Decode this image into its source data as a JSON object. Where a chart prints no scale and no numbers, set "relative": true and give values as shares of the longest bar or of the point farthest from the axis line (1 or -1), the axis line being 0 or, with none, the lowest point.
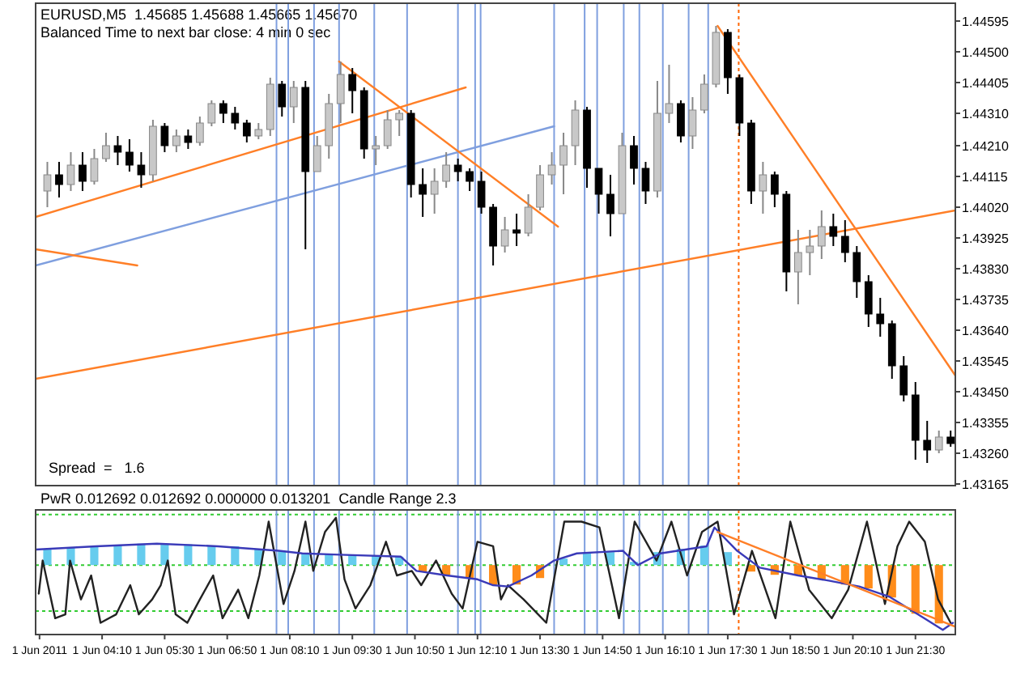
{
  "chart_data": [
    {
      "type": "candlestick",
      "title": "EURUSD,M5  1.45685 1.45688 1.45665 1.45670",
      "subtitle": "Balanced Time to next bar close: 4 min 0 sec",
      "annotations": [
        "Spread  =   1.6"
      ],
      "tick_labels": "y",
      "xlim": [
        "2011-06-01T02:45",
        "2011-06-01T22:21"
      ],
      "ylim": [
        1.4316,
        1.4465
      ],
      "yticks": [
        1.43165,
        {
          "value": 1.4326,
          "label": "1.43260"
        },
        1.43355,
        {
          "value": 1.4345,
          "label": "1.43450"
        },
        1.43545,
        {
          "value": 1.4364,
          "label": "1.43640"
        },
        1.43735,
        {
          "value": 1.4383,
          "label": "1.43830"
        },
        1.43925,
        {
          "value": 1.4402,
          "label": "1.44020"
        },
        1.44115,
        {
          "value": 1.4421,
          "label": "1.44210"
        },
        {
          "value": 1.4431,
          "label": "1.44310"
        },
        1.44405,
        {
          "value": 1.445,
          "label": "1.44500"
        },
        1.44595
      ],
      "x": [
        "2011-06-01T03:00",
        "2011-06-01T03:15",
        "2011-06-01T03:30",
        "2011-06-01T03:45",
        "2011-06-01T04:00",
        "2011-06-01T04:15",
        "2011-06-01T04:30",
        "2011-06-01T04:45",
        "2011-06-01T05:00",
        "2011-06-01T05:15",
        "2011-06-01T05:30",
        "2011-06-01T05:45",
        "2011-06-01T06:00",
        "2011-06-01T06:15",
        "2011-06-01T06:30",
        "2011-06-01T06:45",
        "2011-06-01T07:00",
        "2011-06-01T07:15",
        "2011-06-01T07:30",
        "2011-06-01T07:45",
        "2011-06-01T08:00",
        "2011-06-01T08:15",
        "2011-06-01T08:30",
        "2011-06-01T08:45",
        "2011-06-01T09:00",
        "2011-06-01T09:15",
        "2011-06-01T09:30",
        "2011-06-01T09:45",
        "2011-06-01T10:00",
        "2011-06-01T10:15",
        "2011-06-01T10:30",
        "2011-06-01T10:45",
        "2011-06-01T11:00",
        "2011-06-01T11:15",
        "2011-06-01T11:30",
        "2011-06-01T11:45",
        "2011-06-01T12:00",
        "2011-06-01T12:15",
        "2011-06-01T12:30",
        "2011-06-01T12:45",
        "2011-06-01T13:00",
        "2011-06-01T13:15",
        "2011-06-01T13:30",
        "2011-06-01T13:45",
        "2011-06-01T14:00",
        "2011-06-01T14:15",
        "2011-06-01T14:30",
        "2011-06-01T14:45",
        "2011-06-01T15:00",
        "2011-06-01T15:15",
        "2011-06-01T15:30",
        "2011-06-01T15:45",
        "2011-06-01T16:00",
        "2011-06-01T16:15",
        "2011-06-01T16:30",
        "2011-06-01T16:45",
        "2011-06-01T17:00",
        "2011-06-01T17:15",
        "2011-06-01T17:30",
        "2011-06-01T17:45",
        "2011-06-01T18:00",
        "2011-06-01T18:15",
        "2011-06-01T18:30",
        "2011-06-01T18:45",
        "2011-06-01T19:00",
        "2011-06-01T19:15",
        "2011-06-01T19:30",
        "2011-06-01T19:45",
        "2011-06-01T20:00",
        "2011-06-01T20:15",
        "2011-06-01T20:30",
        "2011-06-01T20:45",
        "2011-06-01T21:00",
        "2011-06-01T21:15",
        "2011-06-01T21:30",
        "2011-06-01T21:45",
        "2011-06-01T22:00",
        "2011-06-01T22:15"
      ],
      "ohlc": [
        [
          1.4407,
          1.4416,
          1.4402,
          1.4412
        ],
        [
          1.4412,
          1.4416,
          1.4405,
          1.4409
        ],
        [
          1.4409,
          1.4419,
          1.4407,
          1.4415
        ],
        [
          1.4415,
          1.4419,
          1.4407,
          1.441
        ],
        [
          1.441,
          1.442,
          1.4409,
          1.4417
        ],
        [
          1.4417,
          1.4425,
          1.4416,
          1.4421
        ],
        [
          1.4421,
          1.4424,
          1.4415,
          1.4419
        ],
        [
          1.4419,
          1.4423,
          1.4413,
          1.4415
        ],
        [
          1.4415,
          1.4419,
          1.4408,
          1.4412
        ],
        [
          1.4412,
          1.4429,
          1.441,
          1.4427
        ],
        [
          1.4427,
          1.4428,
          1.4419,
          1.4421
        ],
        [
          1.4421,
          1.4426,
          1.4419,
          1.4424
        ],
        [
          1.4424,
          1.4426,
          1.442,
          1.4422
        ],
        [
          1.4422,
          1.443,
          1.4421,
          1.4428
        ],
        [
          1.4428,
          1.4435,
          1.4427,
          1.4434
        ],
        [
          1.4434,
          1.4435,
          1.4428,
          1.4431
        ],
        [
          1.4431,
          1.4433,
          1.4426,
          1.4428
        ],
        [
          1.4428,
          1.4429,
          1.4422,
          1.4424
        ],
        [
          1.4424,
          1.4428,
          1.4423,
          1.4426
        ],
        [
          1.4426,
          1.4442,
          1.4424,
          1.444
        ],
        [
          1.444,
          1.4441,
          1.443,
          1.4433
        ],
        [
          1.4433,
          1.4441,
          1.4428,
          1.4439
        ],
        [
          1.4439,
          1.4441,
          1.4389,
          1.4413
        ],
        [
          1.4413,
          1.4424,
          1.4413,
          1.4421
        ],
        [
          1.4421,
          1.4437,
          1.4417,
          1.4434
        ],
        [
          1.4434,
          1.4447,
          1.4428,
          1.4443
        ],
        [
          1.4443,
          1.4445,
          1.4431,
          1.4438
        ],
        [
          1.4438,
          1.4439,
          1.4417,
          1.442
        ],
        [
          1.442,
          1.4424,
          1.4415,
          1.4421
        ],
        [
          1.4421,
          1.4432,
          1.442,
          1.4429
        ],
        [
          1.4429,
          1.4432,
          1.4424,
          1.4431
        ],
        [
          1.4431,
          1.4432,
          1.4405,
          1.4409
        ],
        [
          1.4409,
          1.4414,
          1.4399,
          1.4406
        ],
        [
          1.4406,
          1.4414,
          1.44,
          1.441
        ],
        [
          1.441,
          1.4419,
          1.4408,
          1.4415
        ],
        [
          1.4415,
          1.4417,
          1.441,
          1.4413
        ],
        [
          1.4413,
          1.4414,
          1.4407,
          1.441
        ],
        [
          1.441,
          1.4413,
          1.44,
          1.4402
        ],
        [
          1.4402,
          1.4403,
          1.4384,
          1.439
        ],
        [
          1.439,
          1.4399,
          1.4388,
          1.4395
        ],
        [
          1.4395,
          1.44,
          1.439,
          1.4394
        ],
        [
          1.4394,
          1.4406,
          1.4393,
          1.4402
        ],
        [
          1.4402,
          1.4415,
          1.4401,
          1.4412
        ],
        [
          1.4412,
          1.4419,
          1.4409,
          1.4415
        ],
        [
          1.4415,
          1.4425,
          1.4406,
          1.4421
        ],
        [
          1.4421,
          1.4435,
          1.4415,
          1.4432
        ],
        [
          1.4432,
          1.4433,
          1.4408,
          1.4414
        ],
        [
          1.4414,
          1.4414,
          1.44,
          1.4406
        ],
        [
          1.4406,
          1.4412,
          1.4393,
          1.44
        ],
        [
          1.44,
          1.4425,
          1.44,
          1.4421
        ],
        [
          1.4421,
          1.4424,
          1.4409,
          1.4414
        ],
        [
          1.4414,
          1.4416,
          1.4403,
          1.4407
        ],
        [
          1.4407,
          1.4441,
          1.4405,
          1.4431
        ],
        [
          1.4431,
          1.4446,
          1.4428,
          1.4434
        ],
        [
          1.4434,
          1.4435,
          1.4422,
          1.4424
        ],
        [
          1.4424,
          1.4436,
          1.442,
          1.4432
        ],
        [
          1.4432,
          1.4443,
          1.4431,
          1.444
        ],
        [
          1.444,
          1.4458,
          1.4439,
          1.4456
        ],
        [
          1.4456,
          1.4457,
          1.4437,
          1.4442
        ],
        [
          1.4442,
          1.4443,
          1.4424,
          1.4428
        ],
        [
          1.4428,
          1.4429,
          1.4403,
          1.4407
        ],
        [
          1.4407,
          1.4416,
          1.44,
          1.4412
        ],
        [
          1.4412,
          1.4413,
          1.4402,
          1.4406
        ],
        [
          1.4406,
          1.4407,
          1.4376,
          1.4382
        ],
        [
          1.4382,
          1.4395,
          1.4372,
          1.4388
        ],
        [
          1.4388,
          1.4395,
          1.4381,
          1.439
        ],
        [
          1.439,
          1.4401,
          1.4386,
          1.4396
        ],
        [
          1.4396,
          1.44,
          1.439,
          1.4393
        ],
        [
          1.4393,
          1.4398,
          1.4385,
          1.4388
        ],
        [
          1.4388,
          1.439,
          1.4374,
          1.4379
        ],
        [
          1.4379,
          1.4381,
          1.4365,
          1.4369
        ],
        [
          1.4369,
          1.4374,
          1.4362,
          1.4366
        ],
        [
          1.4366,
          1.4367,
          1.4349,
          1.4353
        ],
        [
          1.4353,
          1.4356,
          1.4342,
          1.4344
        ],
        [
          1.4344,
          1.4348,
          1.4324,
          1.433
        ],
        [
          1.433,
          1.4336,
          1.4323,
          1.4327
        ],
        [
          1.4327,
          1.4333,
          1.4326,
          1.4331
        ],
        [
          1.4331,
          1.4333,
          1.4328,
          1.4329
        ]
      ],
      "series": [
        {
          "type": "line",
          "color": "#ff7f27",
          "x": [
            "2011-06-01T02:45",
            "2011-06-01T11:55"
          ],
          "values": [
            1.4399,
            1.4439
          ]
        },
        {
          "type": "line",
          "color": "#7f9fdf",
          "x": [
            "2011-06-01T02:45",
            "2011-06-01T13:48"
          ],
          "values": [
            1.4384,
            1.4427
          ]
        },
        {
          "type": "line",
          "color": "#ff7f27",
          "x": [
            "2011-06-01T02:45",
            "2011-06-01T04:55"
          ],
          "values": [
            1.4389,
            1.4384
          ]
        },
        {
          "type": "line",
          "color": "#ff7f27",
          "x": [
            "2011-06-01T02:45",
            "2011-06-01T22:21"
          ],
          "values": [
            1.4349,
            1.4401
          ]
        },
        {
          "type": "line",
          "color": "#ff7f27",
          "x": [
            "2011-06-01T09:13",
            "2011-06-01T13:53"
          ],
          "values": [
            1.4447,
            1.4396
          ]
        },
        {
          "type": "line",
          "color": "#ff7f27",
          "x": [
            "2011-06-01T17:17",
            "2011-06-01T22:21"
          ],
          "values": [
            1.4458,
            1.435
          ]
        }
      ],
      "ref_lines": [
        {
          "axis": "x",
          "value": "2011-06-01T07:53",
          "color": "#7f9fdf"
        },
        {
          "axis": "x",
          "value": "2011-06-01T08:08",
          "color": "#7f9fdf"
        },
        {
          "axis": "x",
          "value": "2011-06-01T08:41",
          "color": "#7f9fdf"
        },
        {
          "axis": "x",
          "value": "2011-06-01T09:13",
          "color": "#7f9fdf"
        },
        {
          "axis": "x",
          "value": "2011-06-01T09:58",
          "color": "#7f9fdf"
        },
        {
          "axis": "x",
          "value": "2011-06-01T10:40",
          "color": "#7f9fdf"
        },
        {
          "axis": "x",
          "value": "2011-06-01T11:45",
          "color": "#7f9fdf"
        },
        {
          "axis": "x",
          "value": "2011-06-01T12:07",
          "color": "#7f9fdf"
        },
        {
          "axis": "x",
          "value": "2011-06-01T12:14",
          "color": "#7f9fdf"
        },
        {
          "axis": "x",
          "value": "2011-06-01T13:48",
          "color": "#7f9fdf"
        },
        {
          "axis": "x",
          "value": "2011-06-01T14:27",
          "color": "#7f9fdf"
        },
        {
          "axis": "x",
          "value": "2011-06-01T14:43",
          "color": "#7f9fdf"
        },
        {
          "axis": "x",
          "value": "2011-06-01T15:17",
          "color": "#7f9fdf"
        },
        {
          "axis": "x",
          "value": "2011-06-01T15:37",
          "color": "#7f9fdf"
        },
        {
          "axis": "x",
          "value": "2011-06-01T16:07",
          "color": "#7f9fdf"
        },
        {
          "axis": "x",
          "value": "2011-06-01T16:40",
          "color": "#7f9fdf"
        },
        {
          "axis": "x",
          "value": "2011-06-01T17:05",
          "color": "#7f9fdf"
        },
        {
          "axis": "x",
          "value": "2011-06-01T17:44",
          "color": "#ff6600",
          "line_style": "dotted"
        }
      ]
    },
    {
      "type": "bar",
      "title": "PwR 0.012692 0.012692 0.000000 0.013201  Candle Range 2.3",
      "relative": true,
      "tick_labels": "x",
      "xlim": [
        "2011-06-01T02:45",
        "2011-06-01T22:21"
      ],
      "xticks": [
        {
          "value": "2011-06-01T02:50",
          "label": "1 Jun 2011"
        },
        {
          "value": "2011-06-01T04:10",
          "label": "1 Jun 04:10"
        },
        {
          "value": "2011-06-01T05:30",
          "label": "1 Jun 05:30"
        },
        {
          "value": "2011-06-01T06:50",
          "label": "1 Jun 06:50"
        },
        {
          "value": "2011-06-01T08:10",
          "label": "1 Jun 08:10"
        },
        {
          "value": "2011-06-01T09:30",
          "label": "1 Jun 09:30"
        },
        {
          "value": "2011-06-01T10:50",
          "label": "1 Jun 10:50"
        },
        {
          "value": "2011-06-01T12:10",
          "label": "1 Jun 12:10"
        },
        {
          "value": "2011-06-01T13:30",
          "label": "1 Jun 13:30"
        },
        {
          "value": "2011-06-01T14:50",
          "label": "1 Jun 14:50"
        },
        {
          "value": "2011-06-01T16:10",
          "label": "1 Jun 16:10"
        },
        {
          "value": "2011-06-01T17:30",
          "label": "1 Jun 17:30"
        },
        {
          "value": "2011-06-01T18:50",
          "label": "1 Jun 18:50"
        },
        {
          "value": "2011-06-01T20:10",
          "label": "1 Jun 20:10"
        },
        {
          "value": "2011-06-01T21:30",
          "label": "1 Jun 21:30"
        }
      ],
      "series": [
        {
          "x": [
            "2011-06-01T03:00",
            "2011-06-01T03:30",
            "2011-06-01T04:00",
            "2011-06-01T04:30",
            "2011-06-01T05:00",
            "2011-06-01T05:30",
            "2011-06-01T06:00",
            "2011-06-01T06:30",
            "2011-06-01T07:00",
            "2011-06-01T07:30",
            "2011-06-01T08:00",
            "2011-06-01T08:30",
            "2011-06-01T09:00",
            "2011-06-01T09:30",
            "2011-06-01T10:00",
            "2011-06-01T10:30",
            "2011-06-01T11:00",
            "2011-06-01T11:30",
            "2011-06-01T12:00",
            "2011-06-01T12:30",
            "2011-06-01T13:00",
            "2011-06-01T13:30",
            "2011-06-01T14:00",
            "2011-06-01T14:30",
            "2011-06-01T15:00",
            "2011-06-01T15:30",
            "2011-06-01T16:00",
            "2011-06-01T16:30",
            "2011-06-01T17:00",
            "2011-06-01T17:30",
            "2011-06-01T18:00",
            "2011-06-01T18:30",
            "2011-06-01T19:00",
            "2011-06-01T19:30",
            "2011-06-01T20:00",
            "2011-06-01T20:30",
            "2011-06-01T21:00",
            "2011-06-01T21:30",
            "2011-06-01T22:00"
          ],
          "values": [
            0.24,
            0.27,
            0.29,
            0.31,
            0.33,
            0.33,
            0.32,
            0.3,
            0.29,
            0.25,
            0.22,
            0.18,
            0.17,
            0.15,
            0.14,
            0.13,
            -0.1,
            -0.15,
            -0.2,
            -0.3,
            -0.3,
            -0.2,
            0.1,
            0.18,
            0.2,
            0.05,
            0.2,
            0.25,
            0.3,
            0.2,
            -0.1,
            -0.15,
            -0.16,
            -0.22,
            -0.3,
            -0.36,
            -0.5,
            -0.75,
            -0.9
          ],
          "colors": [
            "#66ccee",
            "#66ccee",
            "#66ccee",
            "#66ccee",
            "#66ccee",
            "#66ccee",
            "#66ccee",
            "#66ccee",
            "#66ccee",
            "#66ccee",
            "#66ccee",
            "#66ccee",
            "#66ccee",
            "#66ccee",
            "#66ccee",
            "#66ccee",
            "#ff8c1a",
            "#ff8c1a",
            "#ff8c1a",
            "#ff8c1a",
            "#ff8c1a",
            "#ff8c1a",
            "#66ccee",
            "#66ccee",
            "#66ccee",
            "#66ccee",
            "#66ccee",
            "#66ccee",
            "#66ccee",
            "#66ccee",
            "#ff8c1a",
            "#ff8c1a",
            "#ff8c1a",
            "#ff8c1a",
            "#ff8c1a",
            "#ff8c1a",
            "#ff8c1a",
            "#ff8c1a",
            "#ff8c1a"
          ]
        },
        {
          "type": "line",
          "color": "#222222",
          "x": [
            "2011-06-01T02:49",
            "2011-06-01T02:54",
            "2011-06-01T03:10",
            "2011-06-01T03:23",
            "2011-06-01T03:29",
            "2011-06-01T03:43",
            "2011-06-01T03:56",
            "2011-06-01T04:08",
            "2011-06-01T04:28",
            "2011-06-01T04:46",
            "2011-06-01T04:57",
            "2011-06-01T05:14",
            "2011-06-01T05:25",
            "2011-06-01T05:34",
            "2011-06-01T05:44",
            "2011-06-01T05:59",
            "2011-06-01T06:15",
            "2011-06-01T06:32",
            "2011-06-01T06:44",
            "2011-06-01T07:04",
            "2011-06-01T07:17",
            "2011-06-01T07:31",
            "2011-06-01T07:43",
            "2011-06-01T08:02",
            "2011-06-01T08:16",
            "2011-06-01T08:30",
            "2011-06-01T08:40",
            "2011-06-01T08:55",
            "2011-06-01T09:09",
            "2011-06-01T09:20",
            "2011-06-01T09:34",
            "2011-06-01T09:53",
            "2011-06-01T10:13",
            "2011-06-01T10:27",
            "2011-06-01T10:46",
            "2011-06-01T10:58",
            "2011-06-01T11:17",
            "2011-06-01T11:37",
            "2011-06-01T11:51",
            "2011-06-01T12:10",
            "2011-06-01T12:30",
            "2011-06-01T12:40",
            "2011-06-01T12:49",
            "2011-06-01T13:09",
            "2011-06-01T13:38",
            "2011-06-01T14:01",
            "2011-06-01T14:23",
            "2011-06-01T14:46",
            "2011-06-01T15:11",
            "2011-06-01T15:31",
            "2011-06-01T15:59",
            "2011-06-01T16:18",
            "2011-06-01T16:38",
            "2011-06-01T16:57",
            "2011-06-01T17:17",
            "2011-06-01T17:38",
            "2011-06-01T18:01",
            "2011-06-01T18:31",
            "2011-06-01T18:50",
            "2011-06-01T19:14",
            "2011-06-01T19:43",
            "2011-06-01T20:04",
            "2011-06-01T20:28",
            "2011-06-01T20:51",
            "2011-06-01T21:07",
            "2011-06-01T21:22",
            "2011-06-01T21:42",
            "2011-06-01T21:59",
            "2011-06-01T22:15"
          ],
          "values": [
            -0.44,
            0.07,
            -0.82,
            -0.76,
            0.07,
            -0.53,
            -0.16,
            -0.89,
            -0.76,
            -0.31,
            -0.76,
            -0.53,
            -0.31,
            0.07,
            -0.76,
            -0.89,
            -0.53,
            -0.16,
            -0.82,
            -0.38,
            -0.82,
            -0.16,
            0.67,
            -0.6,
            -0.09,
            0.67,
            -0.09,
            0.51,
            0.73,
            -0.22,
            -0.67,
            -0.31,
            0.36,
            -0.16,
            -0.09,
            -0.31,
            0.07,
            -0.44,
            -0.67,
            0.36,
            0.29,
            -0.53,
            -0.31,
            -0.53,
            -0.89,
            0.67,
            0.67,
            0.58,
            -0.82,
            0.67,
            0.07,
            0.67,
            -0.16,
            0.51,
            0.67,
            -0.76,
            0.22,
            -0.82,
            0.67,
            -0.38,
            -0.82,
            -0.38,
            0.67,
            -0.6,
            0.29,
            0.67,
            0.36,
            -0.53,
            -0.89
          ]
        },
        {
          "type": "line",
          "color": "#3a3ab8",
          "x": [
            "2011-06-01T02:45",
            "2011-06-01T04:02",
            "2011-06-01T05:20",
            "2011-06-01T06:38",
            "2011-06-01T07:56",
            "2011-06-01T08:26",
            "2011-06-01T09:14",
            "2011-06-01T10:32",
            "2011-06-01T10:52",
            "2011-06-01T11:31",
            "2011-06-01T12:10",
            "2011-06-01T12:30",
            "2011-06-01T12:49",
            "2011-06-01T13:19",
            "2011-06-01T13:48",
            "2011-06-01T14:17",
            "2011-06-01T15:16",
            "2011-06-01T15:35",
            "2011-06-01T16:04",
            "2011-06-01T17:03",
            "2011-06-01T17:13",
            "2011-06-01T17:42",
            "2011-06-01T18:11",
            "2011-06-01T19:00",
            "2011-06-01T19:39",
            "2011-06-01T20:18",
            "2011-06-01T20:57",
            "2011-06-01T21:36",
            "2011-06-01T22:05",
            "2011-06-01T22:18"
          ],
          "values": [
            0.24,
            0.29,
            0.33,
            0.29,
            0.22,
            0.18,
            0.16,
            0.13,
            -0.09,
            -0.16,
            -0.22,
            -0.31,
            -0.33,
            -0.16,
            0.07,
            0.18,
            0.22,
            0,
            0.18,
            0.29,
            0.58,
            0.22,
            -0.04,
            -0.16,
            -0.24,
            -0.33,
            -0.49,
            -0.78,
            -1,
            -0.89
          ]
        },
        {
          "type": "line",
          "color": "#ff7f27",
          "x": [
            "2011-06-01T17:17",
            "2011-06-01T22:21"
          ],
          "values": [
            0.51,
            -0.95
          ]
        }
      ],
      "ref_lines": [
        {
          "axis": "y",
          "value": 0.78,
          "color": "#33cc33",
          "line_style": "dotted"
        },
        {
          "axis": "y",
          "value": 0,
          "color": "#33cc33",
          "line_style": "dotted"
        },
        {
          "axis": "y",
          "value": -0.71,
          "color": "#33cc33",
          "line_style": "dotted"
        },
        {
          "axis": "x",
          "value": "2011-06-01T07:53",
          "color": "#7f9fdf"
        },
        {
          "axis": "x",
          "value": "2011-06-01T08:08",
          "color": "#7f9fdf"
        },
        {
          "axis": "x",
          "value": "2011-06-01T08:41",
          "color": "#7f9fdf"
        },
        {
          "axis": "x",
          "value": "2011-06-01T09:13",
          "color": "#7f9fdf"
        },
        {
          "axis": "x",
          "value": "2011-06-01T09:58",
          "color": "#7f9fdf"
        },
        {
          "axis": "x",
          "value": "2011-06-01T10:40",
          "color": "#7f9fdf"
        },
        {
          "axis": "x",
          "value": "2011-06-01T11:45",
          "color": "#7f9fdf"
        },
        {
          "axis": "x",
          "value": "2011-06-01T12:07",
          "color": "#7f9fdf"
        },
        {
          "axis": "x",
          "value": "2011-06-01T12:14",
          "color": "#7f9fdf"
        },
        {
          "axis": "x",
          "value": "2011-06-01T13:48",
          "color": "#7f9fdf"
        },
        {
          "axis": "x",
          "value": "2011-06-01T14:27",
          "color": "#7f9fdf"
        },
        {
          "axis": "x",
          "value": "2011-06-01T14:43",
          "color": "#7f9fdf"
        },
        {
          "axis": "x",
          "value": "2011-06-01T15:17",
          "color": "#7f9fdf"
        },
        {
          "axis": "x",
          "value": "2011-06-01T15:37",
          "color": "#7f9fdf"
        },
        {
          "axis": "x",
          "value": "2011-06-01T16:07",
          "color": "#7f9fdf"
        },
        {
          "axis": "x",
          "value": "2011-06-01T16:40",
          "color": "#7f9fdf"
        },
        {
          "axis": "x",
          "value": "2011-06-01T17:05",
          "color": "#7f9fdf"
        },
        {
          "axis": "x",
          "value": "2011-06-01T17:44",
          "color": "#ff6600",
          "line_style": "dotted"
        }
      ]
    }
  ]
}
